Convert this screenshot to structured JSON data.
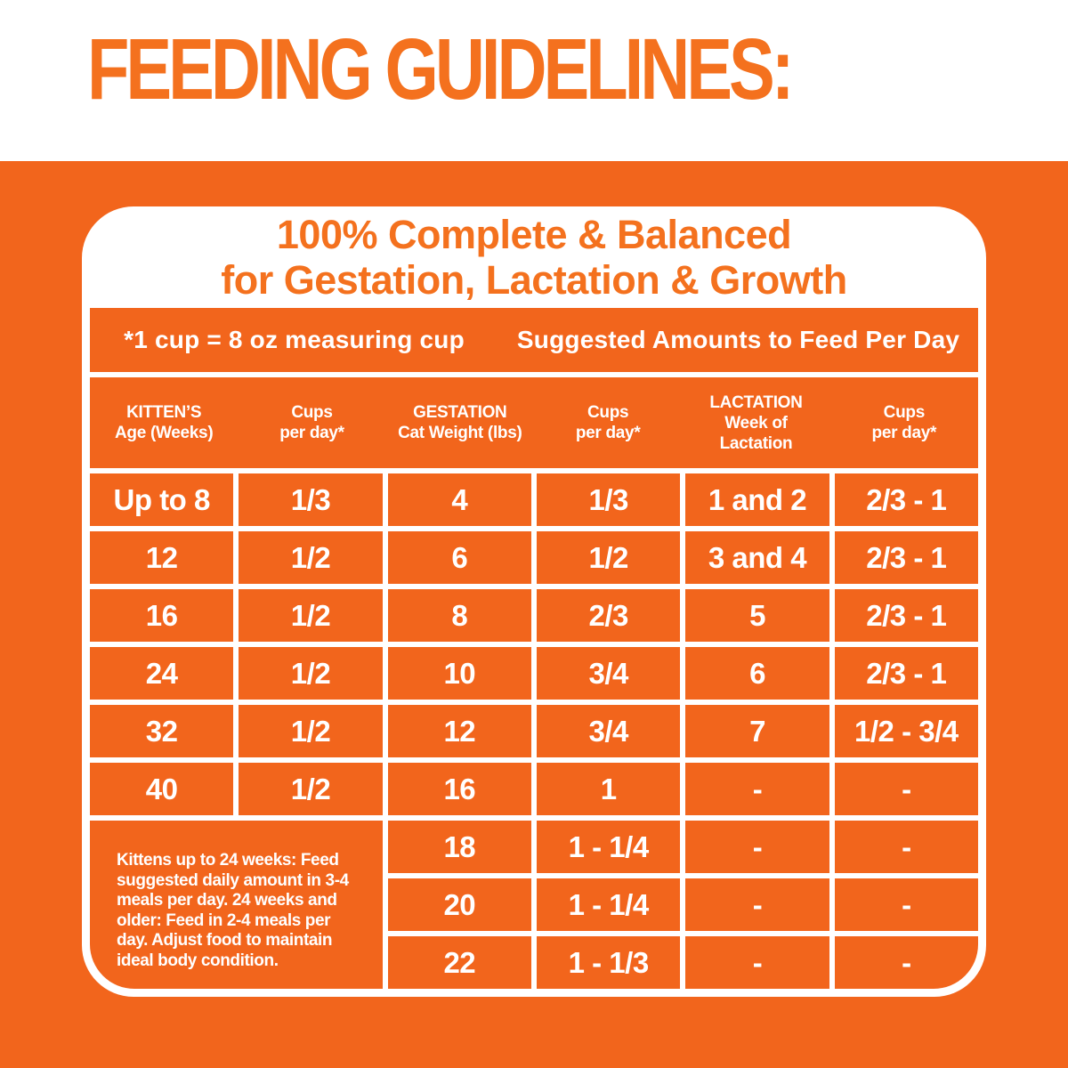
{
  "colors": {
    "orange": "#F2651C",
    "orange_text": "#F4711E",
    "white": "#FFFFFF"
  },
  "header": {
    "title": "FEEDING GUIDELINES:"
  },
  "panel": {
    "title_line1": "100% Complete & Balanced",
    "title_line2": "for Gestation, Lactation & Growth",
    "measuring_note": "*1 cup = 8 oz measuring cup",
    "amounts_heading": "Suggested Amounts to Feed Per Day",
    "columns": [
      [
        "KITTEN’S",
        "Age (Weeks)"
      ],
      [
        "Cups",
        "per day*"
      ],
      [
        "GESTATION",
        "Cat Weight (lbs)"
      ],
      [
        "Cups",
        "per day*"
      ],
      [
        "LACTATION",
        "Week of",
        "Lactation"
      ],
      [
        "Cups",
        "per day*"
      ]
    ],
    "rows": [
      [
        "Up to 8",
        "1/3",
        "4",
        "1/3",
        "1 and 2",
        "2/3 - 1"
      ],
      [
        "12",
        "1/2",
        "6",
        "1/2",
        "3 and 4",
        "2/3 - 1"
      ],
      [
        "16",
        "1/2",
        "8",
        "2/3",
        "5",
        "2/3 - 1"
      ],
      [
        "24",
        "1/2",
        "10",
        "3/4",
        "6",
        "2/3 - 1"
      ],
      [
        "32",
        "1/2",
        "12",
        "3/4",
        "7",
        "1/2 - 3/4"
      ],
      [
        "40",
        "1/2",
        "16",
        "1",
        "-",
        "-"
      ]
    ],
    "note": "Kittens up to 24 weeks: Feed suggested daily amount in 3-4 meals per day. 24 weeks and older: Feed in 2-4 meals per day. Adjust food to maintain ideal body condition.",
    "bottom_rows": [
      [
        "18",
        "1 - 1/4",
        "-",
        "-"
      ],
      [
        "20",
        "1 - 1/4",
        "-",
        "-"
      ],
      [
        "22",
        "1 - 1/3",
        "-",
        "-"
      ]
    ]
  }
}
